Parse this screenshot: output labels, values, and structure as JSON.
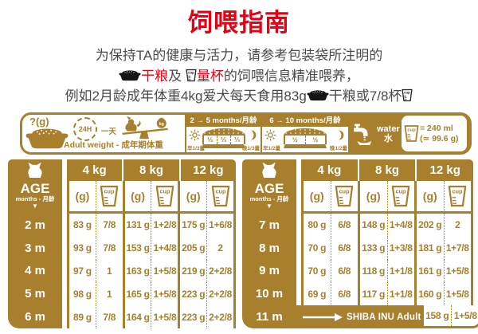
{
  "colors": {
    "gold": "#A8802D",
    "red": "#E60012",
    "text": "#4a4a4a"
  },
  "title": "饲喂指南",
  "intro": {
    "line1": "为保持TA的健康与活力，请参考包装袋所注明的",
    "line2": {
      "dry": "干粮",
      "and": "及",
      "cup": "量杯",
      "rest": "的饲喂信息精准喂养，"
    },
    "line3": {
      "pre": "例如2月龄成年体重4kg爱犬每天食用83g",
      "mid": "干粮或7/8杯"
    }
  },
  "legend": {
    "question": "?(g)",
    "clock": "24H",
    "day": "一天",
    "adult_weight": "Adult weight - 成年期体重",
    "kg": "kg",
    "periods": [
      {
        "title": "2 → 5 months/月龄",
        "fractions": [
          "⅓",
          "⅓",
          "⅓"
        ],
        "morning": "早1/3量",
        "evening": "晚1/3量"
      },
      {
        "title": "6 → 10 months/月龄",
        "fractions": [
          "½",
          "½"
        ],
        "morning": "早1/2量",
        "evening": "晚1/2量"
      }
    ],
    "water_en": "water",
    "water_zh": "水",
    "cup_label": "cup",
    "volume": "= 240 ml",
    "weight_equiv": "(≃ 99.6 g)"
  },
  "tables": [
    {
      "age_label": "AGE",
      "age_sub": "months - 月龄",
      "age_tri": "▼",
      "weights": [
        "4 kg",
        "8 kg",
        "12 kg"
      ],
      "unit_g": "(g)",
      "rows": [
        {
          "age": "2 m",
          "values": [
            "83 g",
            "7/8",
            "131 g",
            "1+2/8",
            "175 g",
            "1+6/8"
          ]
        },
        {
          "age": "3 m",
          "values": [
            "93 g",
            "7/8",
            "153 g",
            "1+4/8",
            "205 g",
            "2"
          ]
        },
        {
          "age": "4 m",
          "values": [
            "97 g",
            "1",
            "163 g",
            "1+5/8",
            "219 g",
            "2+2/8"
          ]
        },
        {
          "age": "5 m",
          "values": [
            "98 g",
            "1",
            "165 g",
            "1+5/8",
            "223 g",
            "2+2/8"
          ]
        },
        {
          "age": "6 m",
          "values": [
            "89 g",
            "7/8",
            "164 g",
            "1+5/8",
            "223 g",
            "2+2/8"
          ]
        }
      ]
    },
    {
      "age_label": "AGE",
      "age_sub": "months - 月龄",
      "age_tri": "▼",
      "weights": [
        "4 kg",
        "8 kg",
        "12 kg"
      ],
      "unit_g": "(g)",
      "rows": [
        {
          "age": "7 m",
          "values": [
            "80 g",
            "6/8",
            "148 g",
            "1+4/8",
            "202 g",
            "2"
          ]
        },
        {
          "age": "8 m",
          "values": [
            "70 g",
            "6/8",
            "133 g",
            "1+3/8",
            "181 g",
            "1+7/8"
          ]
        },
        {
          "age": "9 m",
          "values": [
            "70 g",
            "6/8",
            "118 g",
            "1+1/8",
            "161 g",
            "1+5/8"
          ]
        },
        {
          "age": "10 m",
          "values": [
            "69 g",
            "6/8",
            "117 g",
            "1+1/8",
            "160 g",
            "1+5/8"
          ]
        },
        {
          "age": "11 m",
          "special": "SHIBA INU Adult",
          "values": [
            "158 g",
            "1+5/8"
          ]
        }
      ]
    }
  ]
}
